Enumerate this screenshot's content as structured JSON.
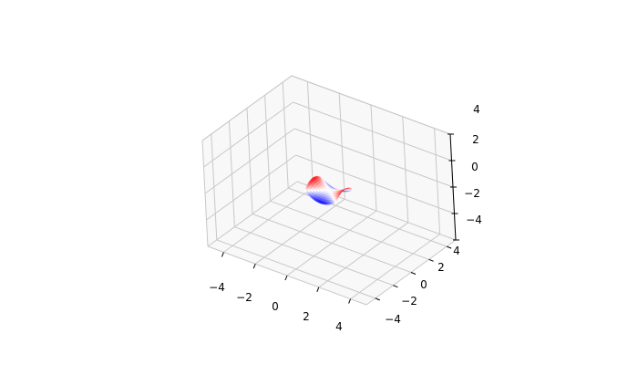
{
  "chart_data": {
    "type": "surface3d",
    "title": "",
    "xlabel": "",
    "ylabel": "",
    "zlabel": "",
    "xlim": [
      -5,
      5
    ],
    "ylim": [
      -5,
      5
    ],
    "zlim": [
      -4,
      4
    ],
    "x_ticks": [
      "−4",
      "−2",
      "0",
      "2",
      "4"
    ],
    "y_ticks": [
      "−4",
      "−2",
      "0",
      "2",
      "4"
    ],
    "z_ticks": [
      "−4",
      "−2",
      "0",
      "2",
      "4"
    ],
    "grid": true,
    "colormap": "bwr",
    "surface": {
      "x_range": [
        -1,
        1
      ],
      "y_range": [
        -1,
        1
      ],
      "z_range": [
        -0.5,
        0.5
      ],
      "function": "saddle"
    }
  },
  "colors": {
    "pane": "#f2f2f2",
    "grid": "#c8c8c8",
    "low": "#0000ff",
    "mid": "#ffffff",
    "high": "#ff0000"
  }
}
